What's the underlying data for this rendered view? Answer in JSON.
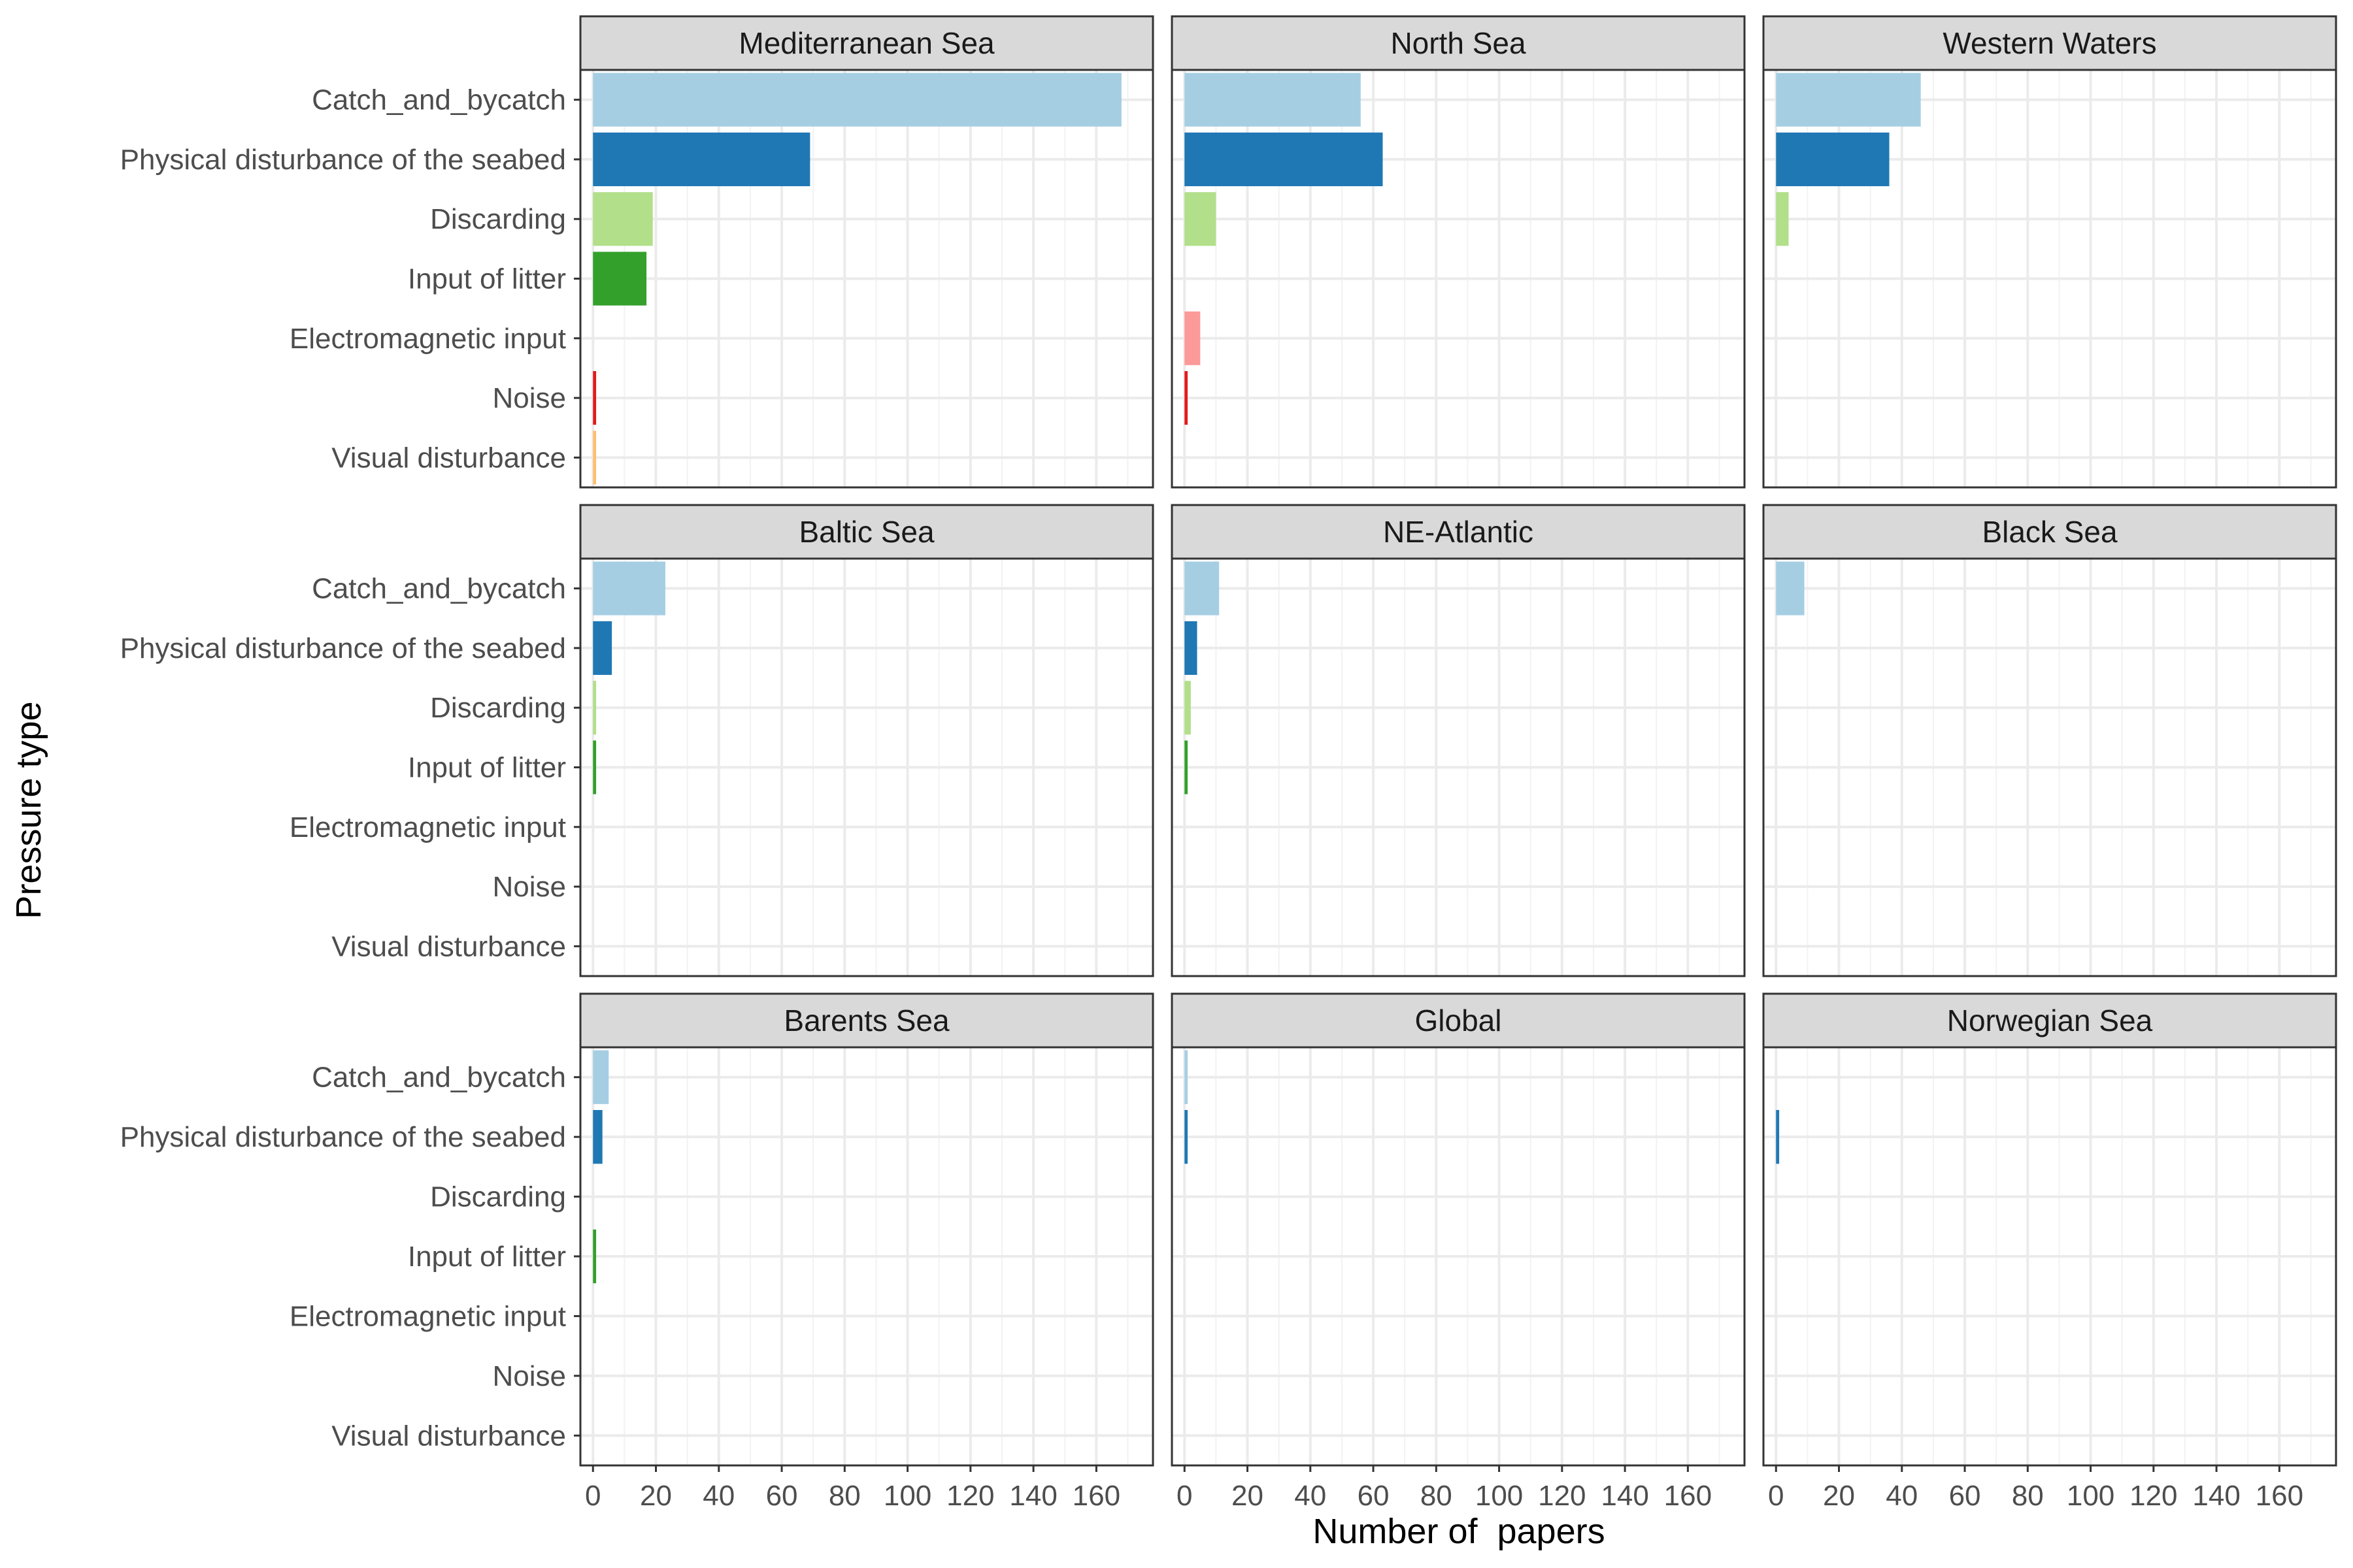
{
  "chart_data": {
    "type": "bar",
    "orientation": "horizontal",
    "xlabel": "Number of  papers",
    "ylabel": "Pressure type",
    "xlim": [
      -4,
      178
    ],
    "xticks": [
      0,
      20,
      40,
      60,
      80,
      100,
      120,
      140,
      160
    ],
    "grid": true,
    "legend": "none",
    "categories": [
      "Catch_and_bycatch",
      "Physical disturbance of the seabed",
      "Discarding",
      "Input of litter",
      "Electromagnetic input",
      "Noise",
      "Visual disturbance"
    ],
    "category_colors": [
      "#a6cee3",
      "#1f78b4",
      "#b2df8a",
      "#33a02c",
      "#fb9a99",
      "#e31a1c",
      "#fdbf6f"
    ],
    "panels": [
      {
        "title": "Mediterranean Sea",
        "values": [
          168,
          69,
          19,
          17,
          0,
          1,
          1
        ]
      },
      {
        "title": "North Sea",
        "values": [
          56,
          63,
          10,
          0,
          5,
          1,
          0
        ]
      },
      {
        "title": "Western Waters",
        "values": [
          46,
          36,
          4,
          0,
          0,
          0,
          0
        ]
      },
      {
        "title": "Baltic Sea",
        "values": [
          23,
          6,
          1,
          1,
          0,
          0,
          0
        ]
      },
      {
        "title": "NE-Atlantic",
        "values": [
          11,
          4,
          2,
          1,
          0,
          0,
          0
        ]
      },
      {
        "title": "Black Sea",
        "values": [
          9,
          0,
          0,
          0,
          0,
          0,
          0
        ]
      },
      {
        "title": "Barents Sea",
        "values": [
          5,
          3,
          0,
          1,
          0,
          0,
          0
        ]
      },
      {
        "title": "Global",
        "values": [
          1,
          1,
          0,
          0,
          0,
          0,
          0
        ]
      },
      {
        "title": "Norwegian Sea",
        "values": [
          0,
          1,
          0,
          0,
          0,
          0,
          0
        ]
      }
    ]
  },
  "colors": {
    "strip_fill": "#d9d9d9",
    "panel_border": "#333333",
    "grid_major": "#ebebeb",
    "grid_minor": "#f2f2f2"
  }
}
